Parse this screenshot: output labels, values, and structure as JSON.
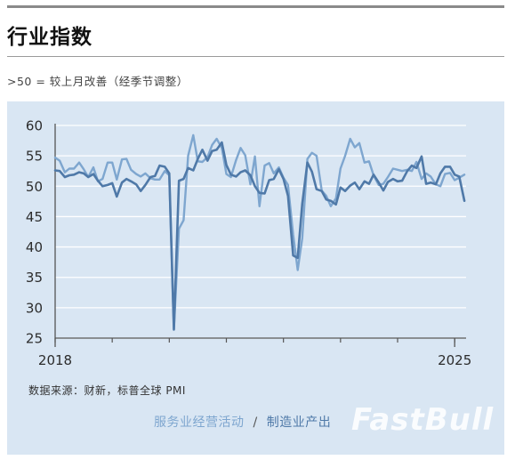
{
  "header": {
    "title": "行业指数",
    "subtitle": ">50 = 较上月改善（经季节调整）"
  },
  "source_note": "数据来源：财新，标普全球 PMI",
  "watermark": "FastBull",
  "colors": {
    "services": "#7ea6cf",
    "manufacturing": "#4f79a8",
    "panel_bg": "#d9e6f3",
    "grid": "#ffffff"
  },
  "chart_data": {
    "type": "line",
    "ylim": [
      25,
      60
    ],
    "yticks": [
      25,
      30,
      35,
      40,
      45,
      50,
      55,
      60
    ],
    "xlim": [
      2018.0,
      2025.2
    ],
    "xticks": [
      {
        "value": 2018,
        "label": "2018"
      },
      {
        "value": 2025,
        "label": "2025"
      }
    ],
    "grid": true,
    "legend_position": "bottom",
    "series": [
      {
        "name": "服务业经营活动",
        "color": "#7ea6cf",
        "x": [
          2018.0,
          2018.08,
          2018.17,
          2018.25,
          2018.33,
          2018.42,
          2018.5,
          2018.58,
          2018.67,
          2018.75,
          2018.83,
          2018.92,
          2019.0,
          2019.08,
          2019.17,
          2019.25,
          2019.33,
          2019.42,
          2019.5,
          2019.58,
          2019.67,
          2019.75,
          2019.83,
          2019.92,
          2020.0,
          2020.08,
          2020.17,
          2020.25,
          2020.33,
          2020.42,
          2020.5,
          2020.58,
          2020.67,
          2020.75,
          2020.83,
          2020.92,
          2021.0,
          2021.08,
          2021.17,
          2021.25,
          2021.33,
          2021.42,
          2021.5,
          2021.58,
          2021.67,
          2021.75,
          2021.83,
          2021.92,
          2022.0,
          2022.08,
          2022.17,
          2022.25,
          2022.33,
          2022.42,
          2022.5,
          2022.58,
          2022.67,
          2022.75,
          2022.83,
          2022.92,
          2023.0,
          2023.08,
          2023.17,
          2023.25,
          2023.33,
          2023.42,
          2023.5,
          2023.58,
          2023.67,
          2023.75,
          2023.83,
          2023.92,
          2024.0,
          2024.08,
          2024.17,
          2024.25,
          2024.33,
          2024.42,
          2024.5,
          2024.58,
          2024.67,
          2024.75,
          2024.83,
          2024.92,
          2025.0,
          2025.08,
          2025.17
        ],
        "values": [
          54.7,
          54.2,
          52.3,
          52.9,
          52.9,
          53.9,
          52.8,
          51.5,
          53.1,
          50.8,
          51.2,
          53.9,
          53.9,
          51.1,
          54.4,
          54.5,
          52.7,
          52.0,
          51.6,
          52.1,
          51.3,
          51.1,
          51.1,
          52.5,
          51.8,
          26.5,
          43.0,
          44.4,
          55.0,
          58.4,
          54.1,
          54.0,
          54.8,
          56.8,
          57.8,
          56.3,
          52.0,
          51.5,
          54.3,
          56.3,
          55.1,
          50.3,
          54.9,
          46.7,
          53.4,
          53.8,
          52.1,
          53.1,
          51.4,
          50.2,
          42.0,
          36.2,
          41.4,
          54.5,
          55.5,
          55.0,
          49.3,
          48.4,
          46.7,
          48.0,
          52.9,
          55.0,
          57.8,
          56.4,
          57.1,
          53.9,
          54.1,
          51.8,
          50.2,
          50.4,
          51.5,
          52.9,
          52.7,
          52.5,
          52.7,
          52.5,
          54.0,
          51.2,
          52.1,
          51.6,
          50.3,
          50.0,
          52.0,
          52.2,
          51.0,
          51.4,
          51.9
        ]
      },
      {
        "name": "制造业产出",
        "color": "#4f79a8",
        "x": [
          2018.0,
          2018.08,
          2018.17,
          2018.25,
          2018.33,
          2018.42,
          2018.5,
          2018.58,
          2018.67,
          2018.75,
          2018.83,
          2018.92,
          2019.0,
          2019.08,
          2019.17,
          2019.25,
          2019.33,
          2019.42,
          2019.5,
          2019.58,
          2019.67,
          2019.75,
          2019.83,
          2019.92,
          2020.0,
          2020.08,
          2020.17,
          2020.25,
          2020.33,
          2020.42,
          2020.5,
          2020.58,
          2020.67,
          2020.75,
          2020.83,
          2020.92,
          2021.0,
          2021.08,
          2021.17,
          2021.25,
          2021.33,
          2021.42,
          2021.5,
          2021.58,
          2021.67,
          2021.75,
          2021.83,
          2021.92,
          2022.0,
          2022.08,
          2022.17,
          2022.25,
          2022.33,
          2022.42,
          2022.5,
          2022.58,
          2022.67,
          2022.75,
          2022.83,
          2022.92,
          2023.0,
          2023.08,
          2023.17,
          2023.25,
          2023.33,
          2023.42,
          2023.5,
          2023.58,
          2023.67,
          2023.75,
          2023.83,
          2023.92,
          2024.0,
          2024.08,
          2024.17,
          2024.25,
          2024.33,
          2024.42,
          2024.5,
          2024.58,
          2024.67,
          2024.75,
          2024.83,
          2024.92,
          2025.0,
          2025.08,
          2025.17
        ],
        "values": [
          52.6,
          52.5,
          51.5,
          51.8,
          51.9,
          52.3,
          52.1,
          51.5,
          52.0,
          50.9,
          50.0,
          50.2,
          50.5,
          48.3,
          50.6,
          51.2,
          50.8,
          50.3,
          49.2,
          50.2,
          51.5,
          51.7,
          53.4,
          53.2,
          52.1,
          26.4,
          50.9,
          51.2,
          53.0,
          52.6,
          54.5,
          56.0,
          54.2,
          55.8,
          56.0,
          57.2,
          53.5,
          51.9,
          51.6,
          52.3,
          52.6,
          51.8,
          50.0,
          48.9,
          48.8,
          51.0,
          51.2,
          52.8,
          51.2,
          48.4,
          38.6,
          38.2,
          47.1,
          53.9,
          52.4,
          49.5,
          49.2,
          47.8,
          47.6,
          47.0,
          49.8,
          49.2,
          50.1,
          50.6,
          49.5,
          50.8,
          50.4,
          51.9,
          50.6,
          49.3,
          50.7,
          51.2,
          50.8,
          50.9,
          52.5,
          53.4,
          53.0,
          54.9,
          50.4,
          50.6,
          50.3,
          52.1,
          53.2,
          53.2,
          51.9,
          51.6,
          47.6
        ]
      }
    ]
  }
}
